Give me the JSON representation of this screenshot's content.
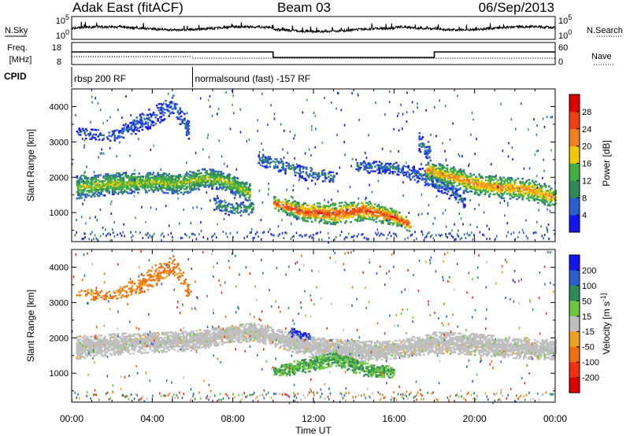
{
  "header": {
    "station": "Adak East (fitACF)",
    "beam": "Beam 03",
    "date": "06/Sep/2013"
  },
  "side_labels": {
    "nsky": "N.Sky",
    "nsearch": "N.Search",
    "freq_line1": "Freq.",
    "freq_line2": "[MHz]",
    "nave": "Nave",
    "cpid": "CPID"
  },
  "noise_panel": {
    "ticks_left": [
      "10^5",
      "10^0"
    ],
    "ticks_right": [
      "10^5",
      "10^0"
    ]
  },
  "freq_panel": {
    "ticks_left": [
      "18",
      "8"
    ],
    "ticks_right": [
      "60",
      "0"
    ]
  },
  "cpid_panel": {
    "segments": [
      {
        "label": "rbsp 200 RF",
        "start_h": 0,
        "end_h": 6
      },
      {
        "label": "normalsound (fast) -157 RF",
        "start_h": 6,
        "end_h": 24
      }
    ]
  },
  "axes": {
    "xlabel": "Time UT",
    "ylabel": "Slant Range [km]",
    "x_ticks": [
      "00:00",
      "04:00",
      "08:00",
      "12:00",
      "16:00",
      "20:00",
      "00:00"
    ],
    "y_ticks": [
      "1000",
      "2000",
      "3000",
      "4000"
    ]
  },
  "colors": {
    "ground_scatter": "#bebebe",
    "power_scale": [
      "#1515f0",
      "#2a5fd0",
      "#2e8b57",
      "#40b040",
      "#f0c800",
      "#f08020",
      "#f04010",
      "#e00000"
    ],
    "velocity_scale": [
      "#1515f0",
      "#2a5fd0",
      "#2e8b57",
      "#6cc83c",
      "#bebebe",
      "#f0a020",
      "#f07010",
      "#f03010",
      "#e00000"
    ]
  },
  "chart_data": [
    {
      "type": "heatmap",
      "title": "Power",
      "ylabel": "Slant Range [km]",
      "x_unit": "hours UT",
      "xlim": [
        0,
        24
      ],
      "ylim": [
        180,
        4500
      ],
      "colorbar": {
        "label": "Power [dB]",
        "range": [
          0,
          32
        ],
        "ticks": [
          "4",
          "8",
          "12",
          "16",
          "20",
          "24",
          "28"
        ]
      },
      "features": [
        {
          "name": "main band",
          "points": [
            [
              0.2,
              1700,
              320
            ],
            [
              2,
              1800,
              300
            ],
            [
              4,
              1850,
              280
            ],
            [
              5.5,
              1800,
              300
            ],
            [
              6.5,
              1950,
              280
            ],
            [
              7.5,
              1900,
              260
            ],
            [
              8.8,
              1550,
              260
            ]
          ],
          "power": 14,
          "density": 0.8
        },
        {
          "name": "upper echoes",
          "points": [
            [
              0.2,
              3250,
              150
            ],
            [
              2,
              3150,
              140
            ],
            [
              3,
              3400,
              220
            ],
            [
              4,
              3700,
              300
            ],
            [
              5,
              4050,
              250
            ],
            [
              5.8,
              3300,
              250
            ]
          ],
          "power": 5,
          "density": 0.4
        },
        {
          "name": "morning patch",
          "points": [
            [
              7,
              1250,
              180
            ],
            [
              8,
              1050,
              180
            ],
            [
              9,
              1150,
              200
            ]
          ],
          "power": 9,
          "density": 0.5
        },
        {
          "name": "midday band",
          "points": [
            [
              10,
              1250,
              180
            ],
            [
              11.5,
              1000,
              250
            ],
            [
              13,
              950,
              300
            ],
            [
              14.5,
              1050,
              280
            ],
            [
              16,
              850,
              220
            ],
            [
              16.8,
              620,
              180
            ]
          ],
          "power": 22,
          "density": 0.75
        },
        {
          "name": "midday upper",
          "points": [
            [
              9.2,
              2500,
              150
            ],
            [
              10.5,
              2300,
              200
            ],
            [
              11.5,
              2100,
              200
            ],
            [
              13,
              2000,
              150
            ]
          ],
          "power": 7,
          "density": 0.45
        },
        {
          "name": "afternoon slant",
          "points": [
            [
              14,
              2300,
              180
            ],
            [
              16,
              2250,
              160
            ],
            [
              17.5,
              2000,
              250
            ],
            [
              18.5,
              1700,
              250
            ],
            [
              19.5,
              1300,
              200
            ]
          ],
          "power": 6,
          "density": 0.5
        },
        {
          "name": "evening band",
          "points": [
            [
              17.5,
              2200,
              220
            ],
            [
              18.5,
              2050,
              300
            ],
            [
              20,
              1800,
              300
            ],
            [
              21,
              1700,
              300
            ],
            [
              22.5,
              1650,
              300
            ],
            [
              23.5,
              1500,
              300
            ],
            [
              24,
              1400,
              250
            ]
          ],
          "power": 18,
          "density": 0.75
        },
        {
          "name": "evening upper",
          "points": [
            [
              17.2,
              3000,
              300
            ],
            [
              17.8,
              2600,
              300
            ]
          ],
          "power": 6,
          "density": 0.4
        }
      ]
    },
    {
      "type": "heatmap",
      "title": "Velocity",
      "ylabel": "Slant Range [km]",
      "x_unit": "hours UT",
      "xlim": [
        0,
        24
      ],
      "ylim": [
        180,
        4500
      ],
      "colorbar": {
        "label": "Velocity [m s^-1]",
        "range": [
          -250,
          250
        ],
        "ticks": [
          "200",
          "100",
          "50",
          "15",
          "-15",
          "-50",
          "-100",
          "-200"
        ]
      },
      "features": [
        {
          "name": "ground scatter band",
          "points": [
            [
              0.2,
              1700,
              320
            ],
            [
              2,
              1800,
              300
            ],
            [
              4,
              1850,
              280
            ],
            [
              6,
              1900,
              280
            ],
            [
              7.5,
              2050,
              250
            ],
            [
              9,
              2150,
              250
            ],
            [
              10,
              2000,
              250
            ],
            [
              12,
              1700,
              300
            ],
            [
              14,
              1600,
              300
            ],
            [
              16,
              1650,
              250
            ],
            [
              18,
              1850,
              300
            ],
            [
              20,
              1800,
              300
            ],
            [
              22,
              1700,
              300
            ],
            [
              24,
              1650,
              280
            ]
          ],
          "velocity": "ground",
          "density": 0.9
        },
        {
          "name": "green patch",
          "points": [
            [
              10,
              1000,
              150
            ],
            [
              11.5,
              1200,
              200
            ],
            [
              13,
              1400,
              200
            ],
            [
              14.5,
              1100,
              200
            ],
            [
              16,
              1000,
              150
            ]
          ],
          "velocity": 30,
          "density": 0.8
        },
        {
          "name": "blue patch",
          "points": [
            [
              10.8,
              2150,
              120
            ],
            [
              11.8,
              2000,
              100
            ]
          ],
          "velocity": 150,
          "density": 0.6
        },
        {
          "name": "upper echoes",
          "points": [
            [
              0.2,
              3250,
              150
            ],
            [
              2,
              3150,
              140
            ],
            [
              3,
              3400,
              220
            ],
            [
              4,
              3700,
              300
            ],
            [
              5,
              4050,
              250
            ],
            [
              5.8,
              3300,
              250
            ]
          ],
          "velocity": -40,
          "density": 0.4
        }
      ]
    }
  ]
}
